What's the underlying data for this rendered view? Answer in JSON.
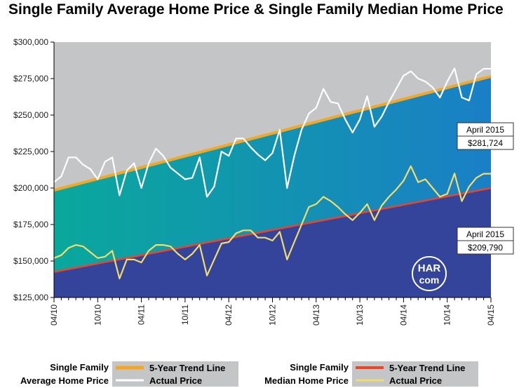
{
  "chart_data": {
    "type": "area",
    "title": "Single Family Average Home Price & Single Family Median Home Price",
    "y_ticks": [
      "$125,000",
      "$150,000",
      "$175,000",
      "$200,000",
      "$225,000",
      "$250,000",
      "$275,000",
      "$300,000"
    ],
    "ylim": [
      125000,
      300000
    ],
    "x_ticks": [
      "04/10",
      "10/10",
      "04/11",
      "10/11",
      "04/12",
      "10/12",
      "04/13",
      "10/13",
      "04/14",
      "10/14",
      "04/15"
    ],
    "months_count": 61,
    "series": [
      {
        "name": "Single Family Average Home Price - Actual Price",
        "color": "#ffffff",
        "values": [
          204000,
          208000,
          221000,
          221000,
          216000,
          213000,
          206000,
          218000,
          221000,
          195000,
          212000,
          217000,
          200000,
          217000,
          227000,
          222000,
          214000,
          210000,
          206000,
          207000,
          221000,
          194000,
          201000,
          225000,
          222000,
          234000,
          234000,
          228000,
          223000,
          219000,
          224000,
          240000,
          200000,
          222000,
          240000,
          251000,
          255000,
          268000,
          259000,
          258000,
          247000,
          238000,
          247000,
          263000,
          242000,
          249000,
          259000,
          268000,
          277000,
          280000,
          275000,
          273000,
          269000,
          262000,
          273000,
          282000,
          262000,
          260000,
          278000,
          281724,
          281724
        ]
      },
      {
        "name": "Single Family Average Home Price - 5-Year Trend Line",
        "color": "#f5a623",
        "values": [
          198500,
          276500
        ]
      },
      {
        "name": "Single Family Median Home Price - Actual Price",
        "color": "#f2dc6a",
        "values": [
          152000,
          154000,
          159000,
          161000,
          160000,
          156000,
          152000,
          153000,
          157000,
          138000,
          151000,
          151000,
          149000,
          157000,
          161000,
          161000,
          160000,
          155000,
          151000,
          155000,
          161000,
          140000,
          151000,
          162000,
          163000,
          169000,
          171000,
          171000,
          166000,
          166000,
          164000,
          170000,
          151000,
          163000,
          175000,
          187000,
          189000,
          194000,
          191000,
          187000,
          182000,
          178000,
          183000,
          189000,
          178000,
          188000,
          194000,
          199000,
          205000,
          215000,
          204000,
          206000,
          200000,
          194000,
          196000,
          210000,
          191000,
          201000,
          207000,
          209790,
          209790
        ]
      },
      {
        "name": "Single Family Median Home Price - 5-Year Trend Line",
        "color": "#e8452a",
        "values": [
          142500,
          200000
        ]
      }
    ],
    "annotations": [
      {
        "period": "April 2015",
        "value": "$281,724"
      },
      {
        "period": "April 2015",
        "value": "$209,790"
      }
    ],
    "legend": [
      {
        "title_lines": [
          "Single Family",
          "Average Home Price"
        ],
        "items": [
          {
            "label": "5-Year Trend Line",
            "color": "#f5a623"
          },
          {
            "label": "Actual Price",
            "color": "#ffffff"
          }
        ]
      },
      {
        "title_lines": [
          "Single Family",
          "Median Home Price"
        ],
        "items": [
          {
            "label": "5-Year Trend Line",
            "color": "#e8452a"
          },
          {
            "label": "Actual Price",
            "color": "#f2dc6a"
          }
        ]
      }
    ],
    "colors": {
      "background": "#c4c5c7",
      "band_left": "#0aa89c",
      "band_right": "#1a7fc6",
      "lower_area": "#33449a",
      "legend_box": "#c4c5c7"
    },
    "logo": {
      "line1": "HAR",
      "line2": "com"
    }
  }
}
